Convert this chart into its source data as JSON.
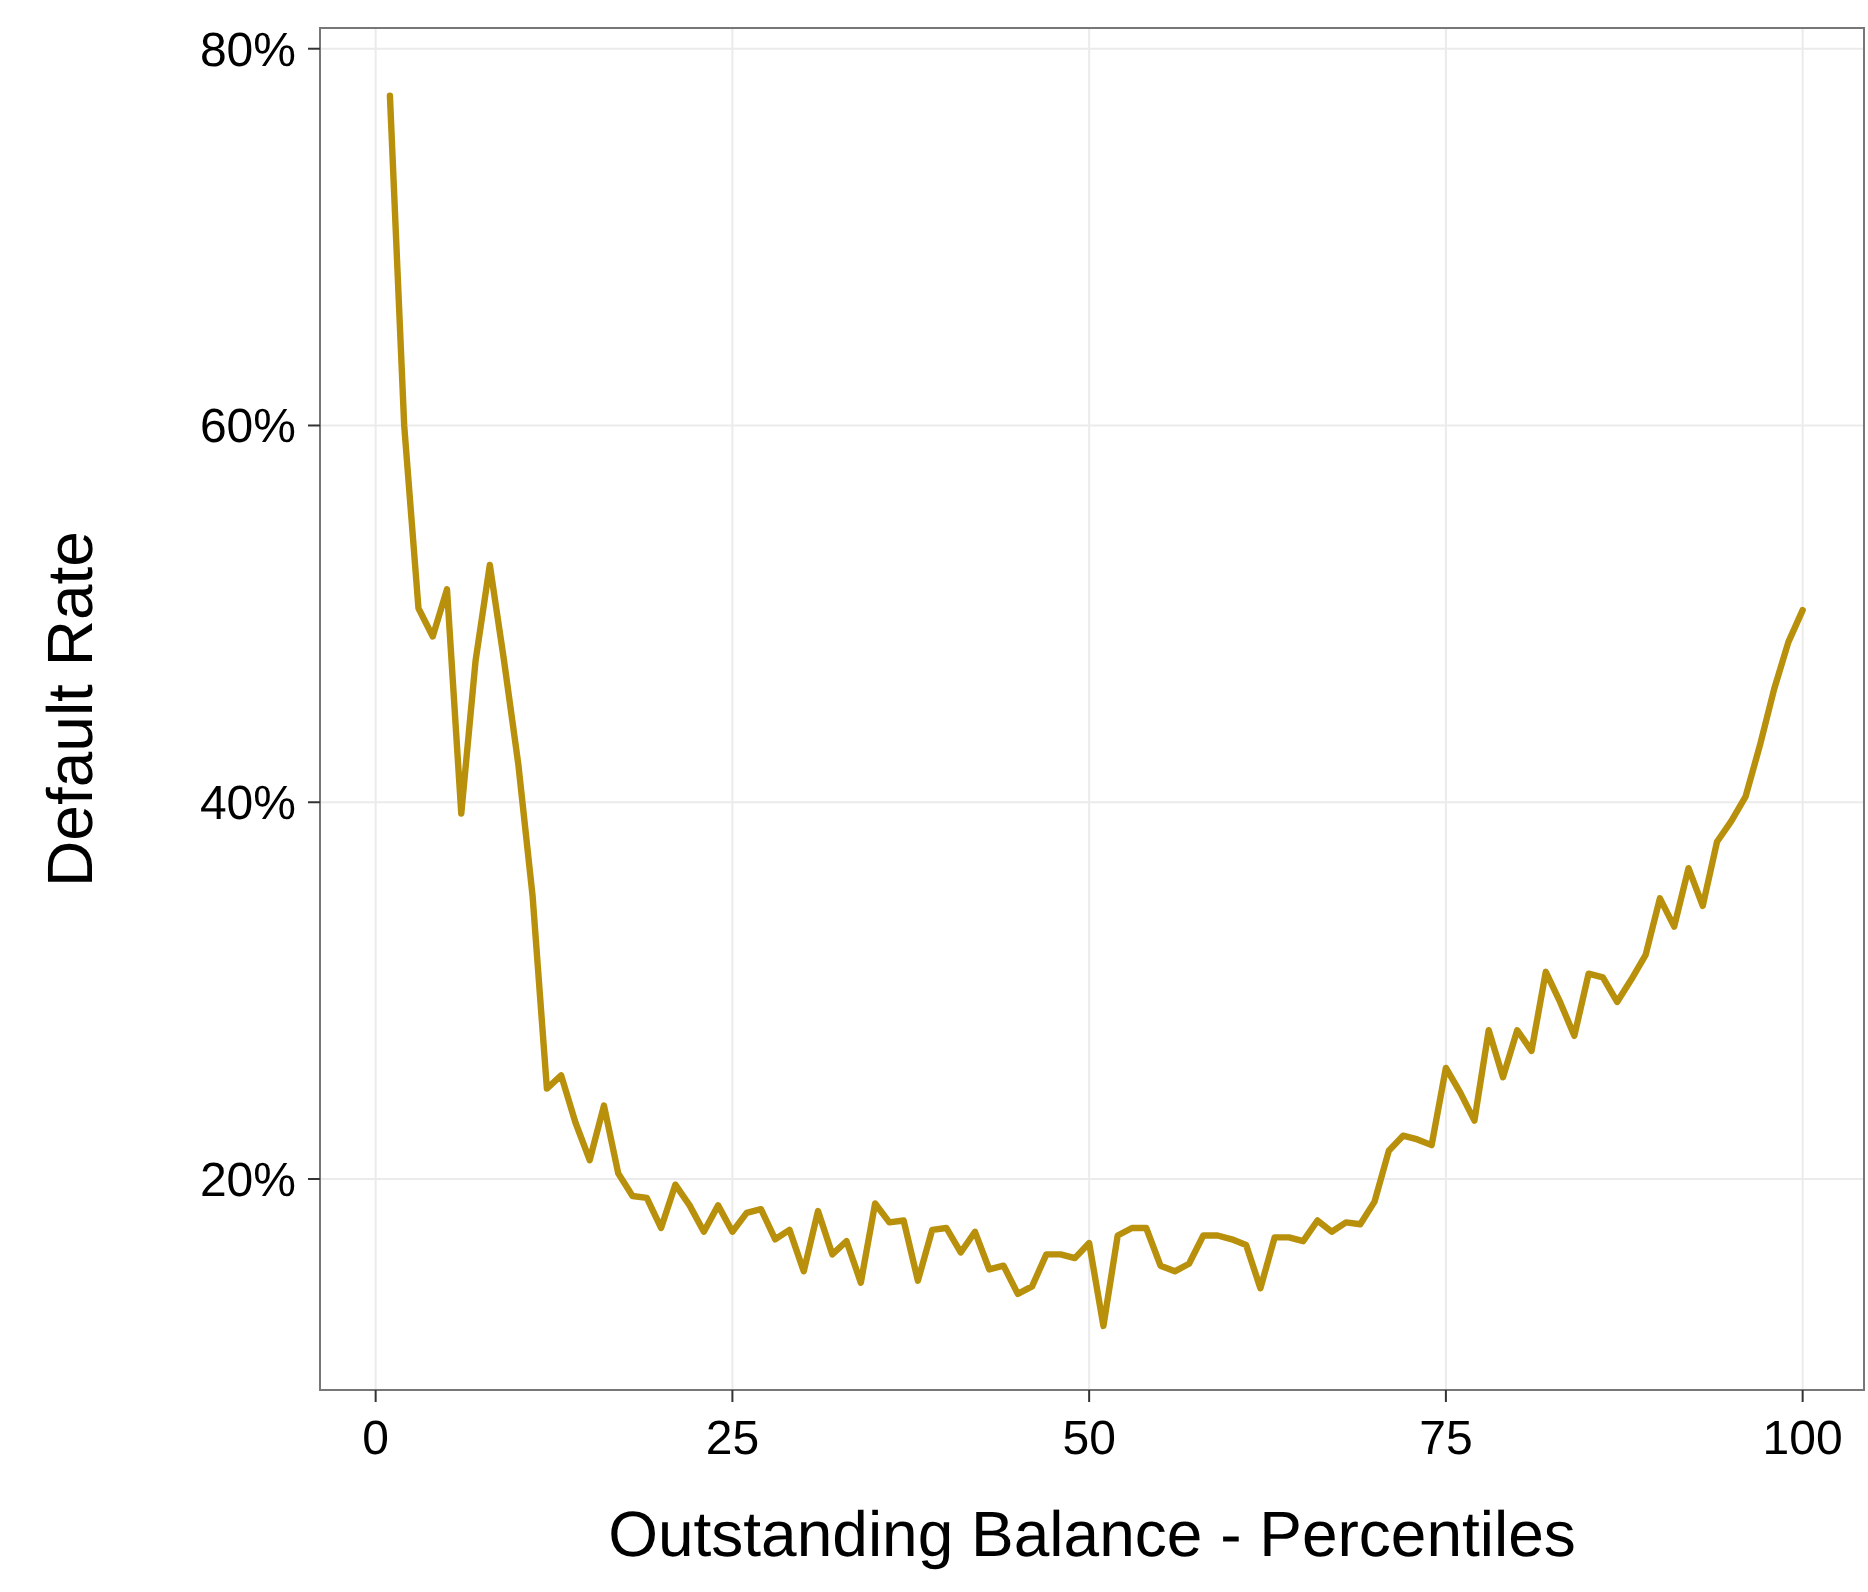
{
  "chart_data": {
    "type": "line",
    "xlabel": "Outstanding Balance - Percentiles",
    "ylabel": "Default Rate",
    "x": [
      1,
      2,
      3,
      4,
      5,
      6,
      7,
      8,
      9,
      10,
      11,
      12,
      13,
      14,
      15,
      16,
      17,
      18,
      19,
      20,
      21,
      22,
      23,
      24,
      25,
      26,
      27,
      28,
      29,
      30,
      31,
      32,
      33,
      34,
      35,
      36,
      37,
      38,
      39,
      40,
      41,
      42,
      43,
      44,
      45,
      46,
      47,
      48,
      49,
      50,
      51,
      52,
      53,
      54,
      55,
      56,
      57,
      58,
      59,
      60,
      61,
      62,
      63,
      64,
      65,
      66,
      67,
      68,
      69,
      70,
      71,
      72,
      73,
      74,
      75,
      76,
      77,
      78,
      79,
      80,
      81,
      82,
      83,
      84,
      85,
      86,
      87,
      88,
      89,
      90,
      91,
      92,
      93,
      94,
      95,
      96,
      97,
      98,
      99,
      100
    ],
    "series": [
      {
        "color": "#b8900b",
        "values": [
          77.5,
          60,
          50.3,
          48.8,
          51.3,
          39.4,
          47.5,
          52.6,
          47.5,
          42,
          35,
          24.8,
          25.5,
          23,
          21,
          23.9,
          20.3,
          19.1,
          19,
          17.4,
          19.7,
          18.6,
          17.2,
          18.6,
          17.2,
          18.2,
          18.4,
          16.8,
          17.3,
          15.1,
          18.3,
          16,
          16.7,
          14.5,
          18.7,
          17.7,
          17.8,
          14.6,
          17.3,
          17.4,
          16.1,
          17.2,
          15.2,
          15.4,
          13.9,
          14.3,
          16,
          16,
          15.8,
          16.6,
          12.2,
          17,
          17.4,
          17.4,
          15.4,
          15.1,
          15.5,
          17,
          17,
          16.8,
          16.5,
          14.2,
          16.9,
          16.9,
          16.7,
          17.8,
          17.2,
          17.7,
          17.6,
          18.8,
          21.5,
          22.3,
          22.1,
          21.8,
          25.9,
          24.6,
          23.1,
          27.9,
          25.4,
          27.9,
          26.8,
          31,
          29.4,
          27.6,
          30.9,
          30.7,
          29.4,
          30.6,
          31.9,
          34.9,
          33.4,
          36.5,
          34.5,
          37.9,
          39,
          40.3,
          43,
          46,
          48.5,
          50.2
        ]
      }
    ],
    "xlim": [
      -3.9,
      104.3
    ],
    "ylim": [
      8.8,
      81.1
    ],
    "xticks": [
      0,
      25,
      50,
      75,
      100
    ],
    "yticks": [
      {
        "value": 20,
        "label": "20%"
      },
      {
        "value": 40,
        "label": "40%"
      },
      {
        "value": 60,
        "label": "60%"
      },
      {
        "value": 80,
        "label": "80%"
      }
    ],
    "grid": true,
    "line_style": "solid",
    "marker": "none"
  }
}
